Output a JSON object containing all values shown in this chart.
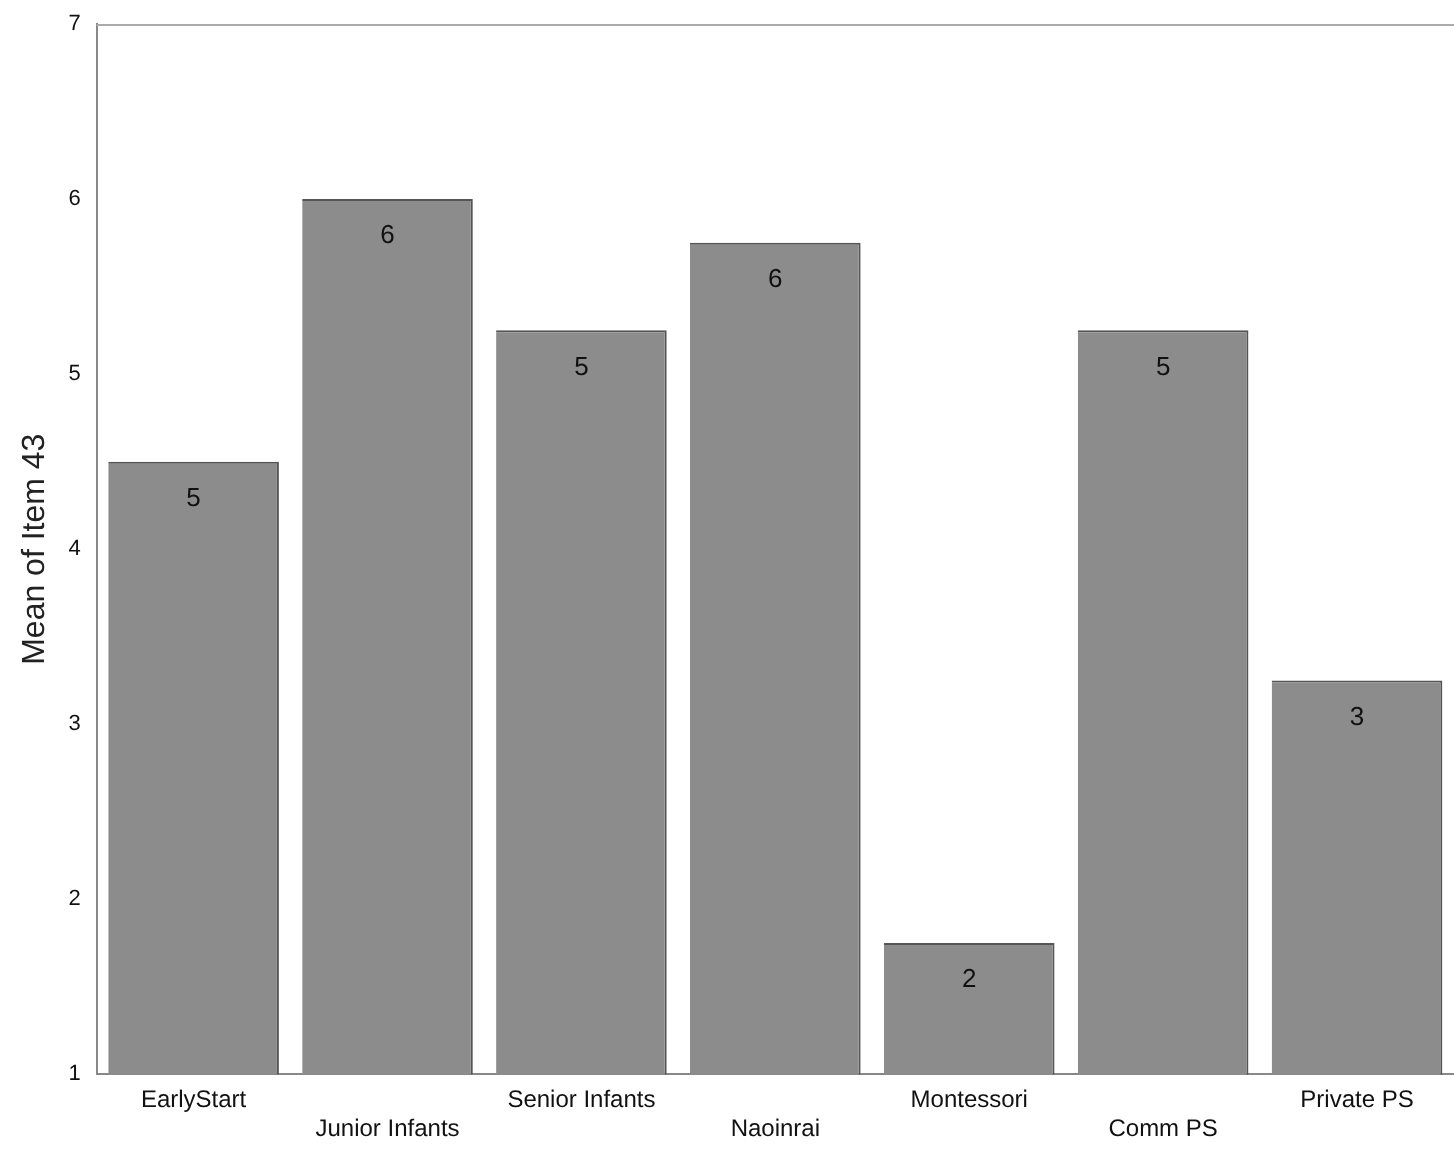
{
  "chart_data": {
    "type": "bar",
    "ylabel": "Mean of Item 43",
    "categories": [
      "EarlyStart",
      "Junior Infants",
      "Senior Infants",
      "Naoinrai",
      "Montessori",
      "Comm PS",
      "Private PS"
    ],
    "values": [
      4.5,
      6.0,
      5.25,
      5.75,
      1.75,
      5.25,
      3.25
    ],
    "value_labels": [
      "5",
      "6",
      "5",
      "6",
      "2",
      "5",
      "3"
    ],
    "color": "#8c8c8c",
    "ylim": [
      1,
      7
    ],
    "yticks": [
      1,
      2,
      3,
      4,
      5,
      6,
      7
    ],
    "grid": false,
    "legend": false
  }
}
